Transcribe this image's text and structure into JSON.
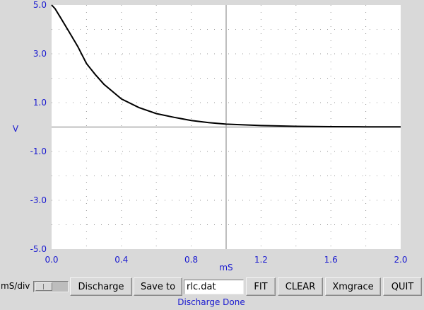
{
  "chart_data": {
    "type": "line",
    "xlabel": "mS",
    "ylabel": "V",
    "xlim": [
      0.0,
      2.0
    ],
    "ylim": [
      -5.0,
      5.0
    ],
    "x_tick_labels": [
      "0.0",
      "0.4",
      "0.8",
      "1.2",
      "1.6",
      "2.0"
    ],
    "y_tick_labels": [
      "5.0",
      "3.0",
      "1.0",
      "-1.0",
      "-3.0",
      "-5.0"
    ],
    "grid": true,
    "series": [
      {
        "color": "#000000",
        "x": [
          0.0,
          0.02,
          0.05,
          0.1,
          0.15,
          0.2,
          0.25,
          0.3,
          0.4,
          0.5,
          0.6,
          0.7,
          0.8,
          0.9,
          1.0,
          1.2,
          1.4,
          1.6,
          1.8,
          2.0
        ],
        "y": [
          5.0,
          4.85,
          4.5,
          3.9,
          3.3,
          2.6,
          2.15,
          1.75,
          1.15,
          0.8,
          0.55,
          0.4,
          0.27,
          0.18,
          0.12,
          0.06,
          0.03,
          0.015,
          0.01,
          0.005
        ]
      }
    ]
  },
  "controls": {
    "scale_label": "mS/div",
    "discharge_label": "Discharge",
    "save_to_label": "Save to",
    "filename_value": "rlc.dat",
    "fit_label": "FIT",
    "clear_label": "CLEAR",
    "xmgrace_label": "Xmgrace",
    "quit_label": "QUIT"
  },
  "status": {
    "text": "Discharge Done"
  },
  "colors": {
    "plot_background": "#ffffff",
    "label_color": "#1a1ad0",
    "trace_color": "#000000"
  }
}
